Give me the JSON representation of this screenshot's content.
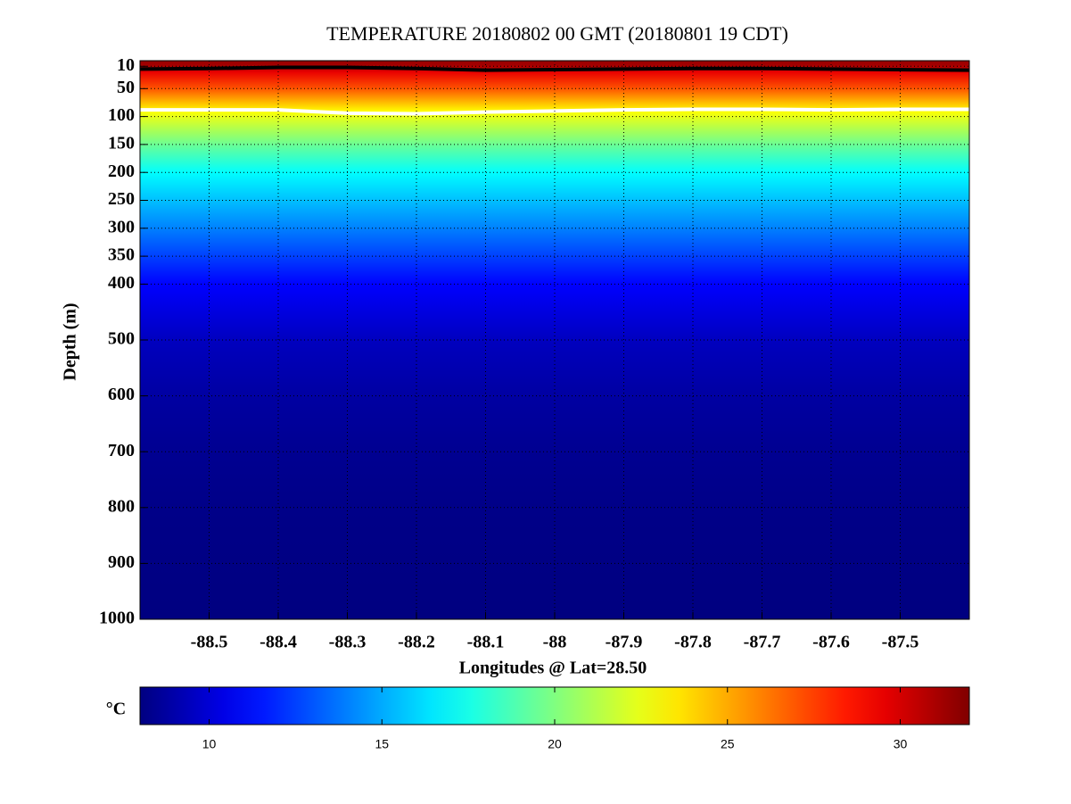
{
  "chart_data": {
    "type": "section",
    "title": "TEMPERATURE 20180802 00 GMT (20180801 19 CDT)",
    "x_label": "Longitudes @ Lat=28.50",
    "y_label": "Depth (m)",
    "xlim": [
      -88.6,
      -87.4
    ],
    "xticks": [
      -88.5,
      -88.4,
      -88.3,
      -88.2,
      -88.1,
      -88,
      -87.9,
      -87.8,
      -87.7,
      -87.6,
      -87.5
    ],
    "ylim": [
      0,
      1000
    ],
    "y_reversed": true,
    "yticks": [
      10,
      50,
      100,
      150,
      200,
      250,
      300,
      350,
      400,
      500,
      600,
      700,
      800,
      900,
      1000
    ],
    "grid": true,
    "colormap": "jet",
    "profile": {
      "depth": [
        0,
        10,
        20,
        50,
        90,
        150,
        200,
        250,
        300,
        350,
        400,
        500,
        600,
        700,
        800,
        1000
      ],
      "temperature": [
        31.5,
        31,
        29.5,
        27,
        23,
        19.5,
        17,
        15.5,
        14,
        12.5,
        11,
        9.5,
        8.8,
        8.4,
        8.2,
        8
      ]
    },
    "contours": [
      {
        "color": "#000000",
        "x": [
          -88.6,
          -88.5,
          -88.4,
          -88.3,
          -88.2,
          -88.1,
          -88,
          -87.9,
          -87.8,
          -87.7,
          -87.6,
          -87.5,
          -87.4
        ],
        "depth": [
          15,
          14,
          12,
          12,
          14,
          17,
          16,
          15,
          14,
          14,
          15,
          16,
          17
        ]
      },
      {
        "color": "#ffffff",
        "x": [
          -88.6,
          -88.5,
          -88.4,
          -88.3,
          -88.2,
          -88.1,
          -88,
          -87.9,
          -87.8,
          -87.7,
          -87.6,
          -87.5,
          -87.4
        ],
        "depth": [
          88,
          88,
          88,
          94,
          95,
          92,
          90,
          88,
          87,
          87,
          88,
          87,
          87
        ]
      }
    ],
    "colorbar_label": "°C",
    "clim": [
      8,
      32
    ],
    "cticks": [
      10,
      15,
      20,
      25,
      30
    ]
  }
}
